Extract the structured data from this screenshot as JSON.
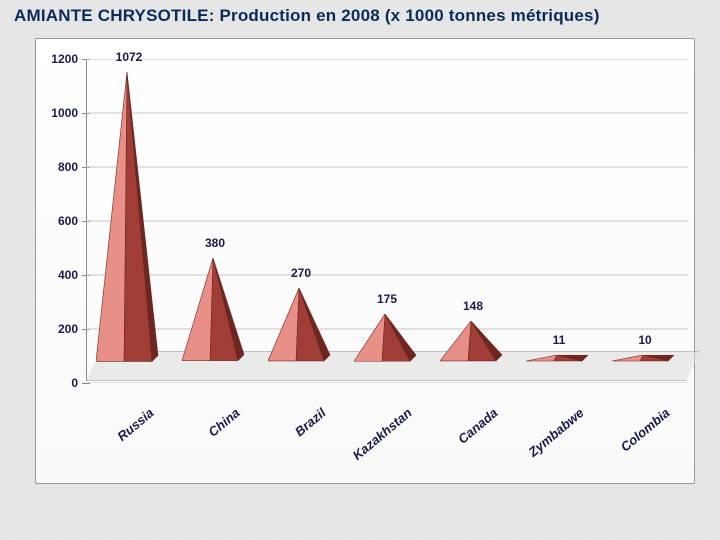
{
  "title": "AMIANTE CHRYSOTILE: Production en 2008 (x 1000 tonnes métriques)",
  "title_color": "#0a2a5a",
  "title_fontsize": 17,
  "chart": {
    "type": "pyramid-bar",
    "background_color": "#ffffff",
    "floor_color": "#e0e0e0",
    "grid_color": "#c7c7c7",
    "axis_color": "#888888",
    "label_color": "#1a1a4a",
    "ylim": [
      0,
      1200
    ],
    "ytick_step": 200,
    "yticks": [
      0,
      200,
      400,
      600,
      800,
      1000,
      1200
    ],
    "value_fontsize": 12,
    "xlabel_fontsize": 13,
    "xlabel_rotation": -40,
    "pyramid_light": "#e89088",
    "pyramid_dark": "#a03d36",
    "pyramid_edge": "#6e2620",
    "categories": [
      "Russia",
      "China",
      "Brazil",
      "Kazakhstan",
      "Canada",
      "Zymbabwe",
      "Colombia"
    ],
    "values": [
      1072,
      380,
      270,
      175,
      148,
      11,
      10
    ],
    "value_labels": [
      "1072",
      "380",
      "270",
      "175",
      "148",
      "11",
      "10"
    ]
  }
}
